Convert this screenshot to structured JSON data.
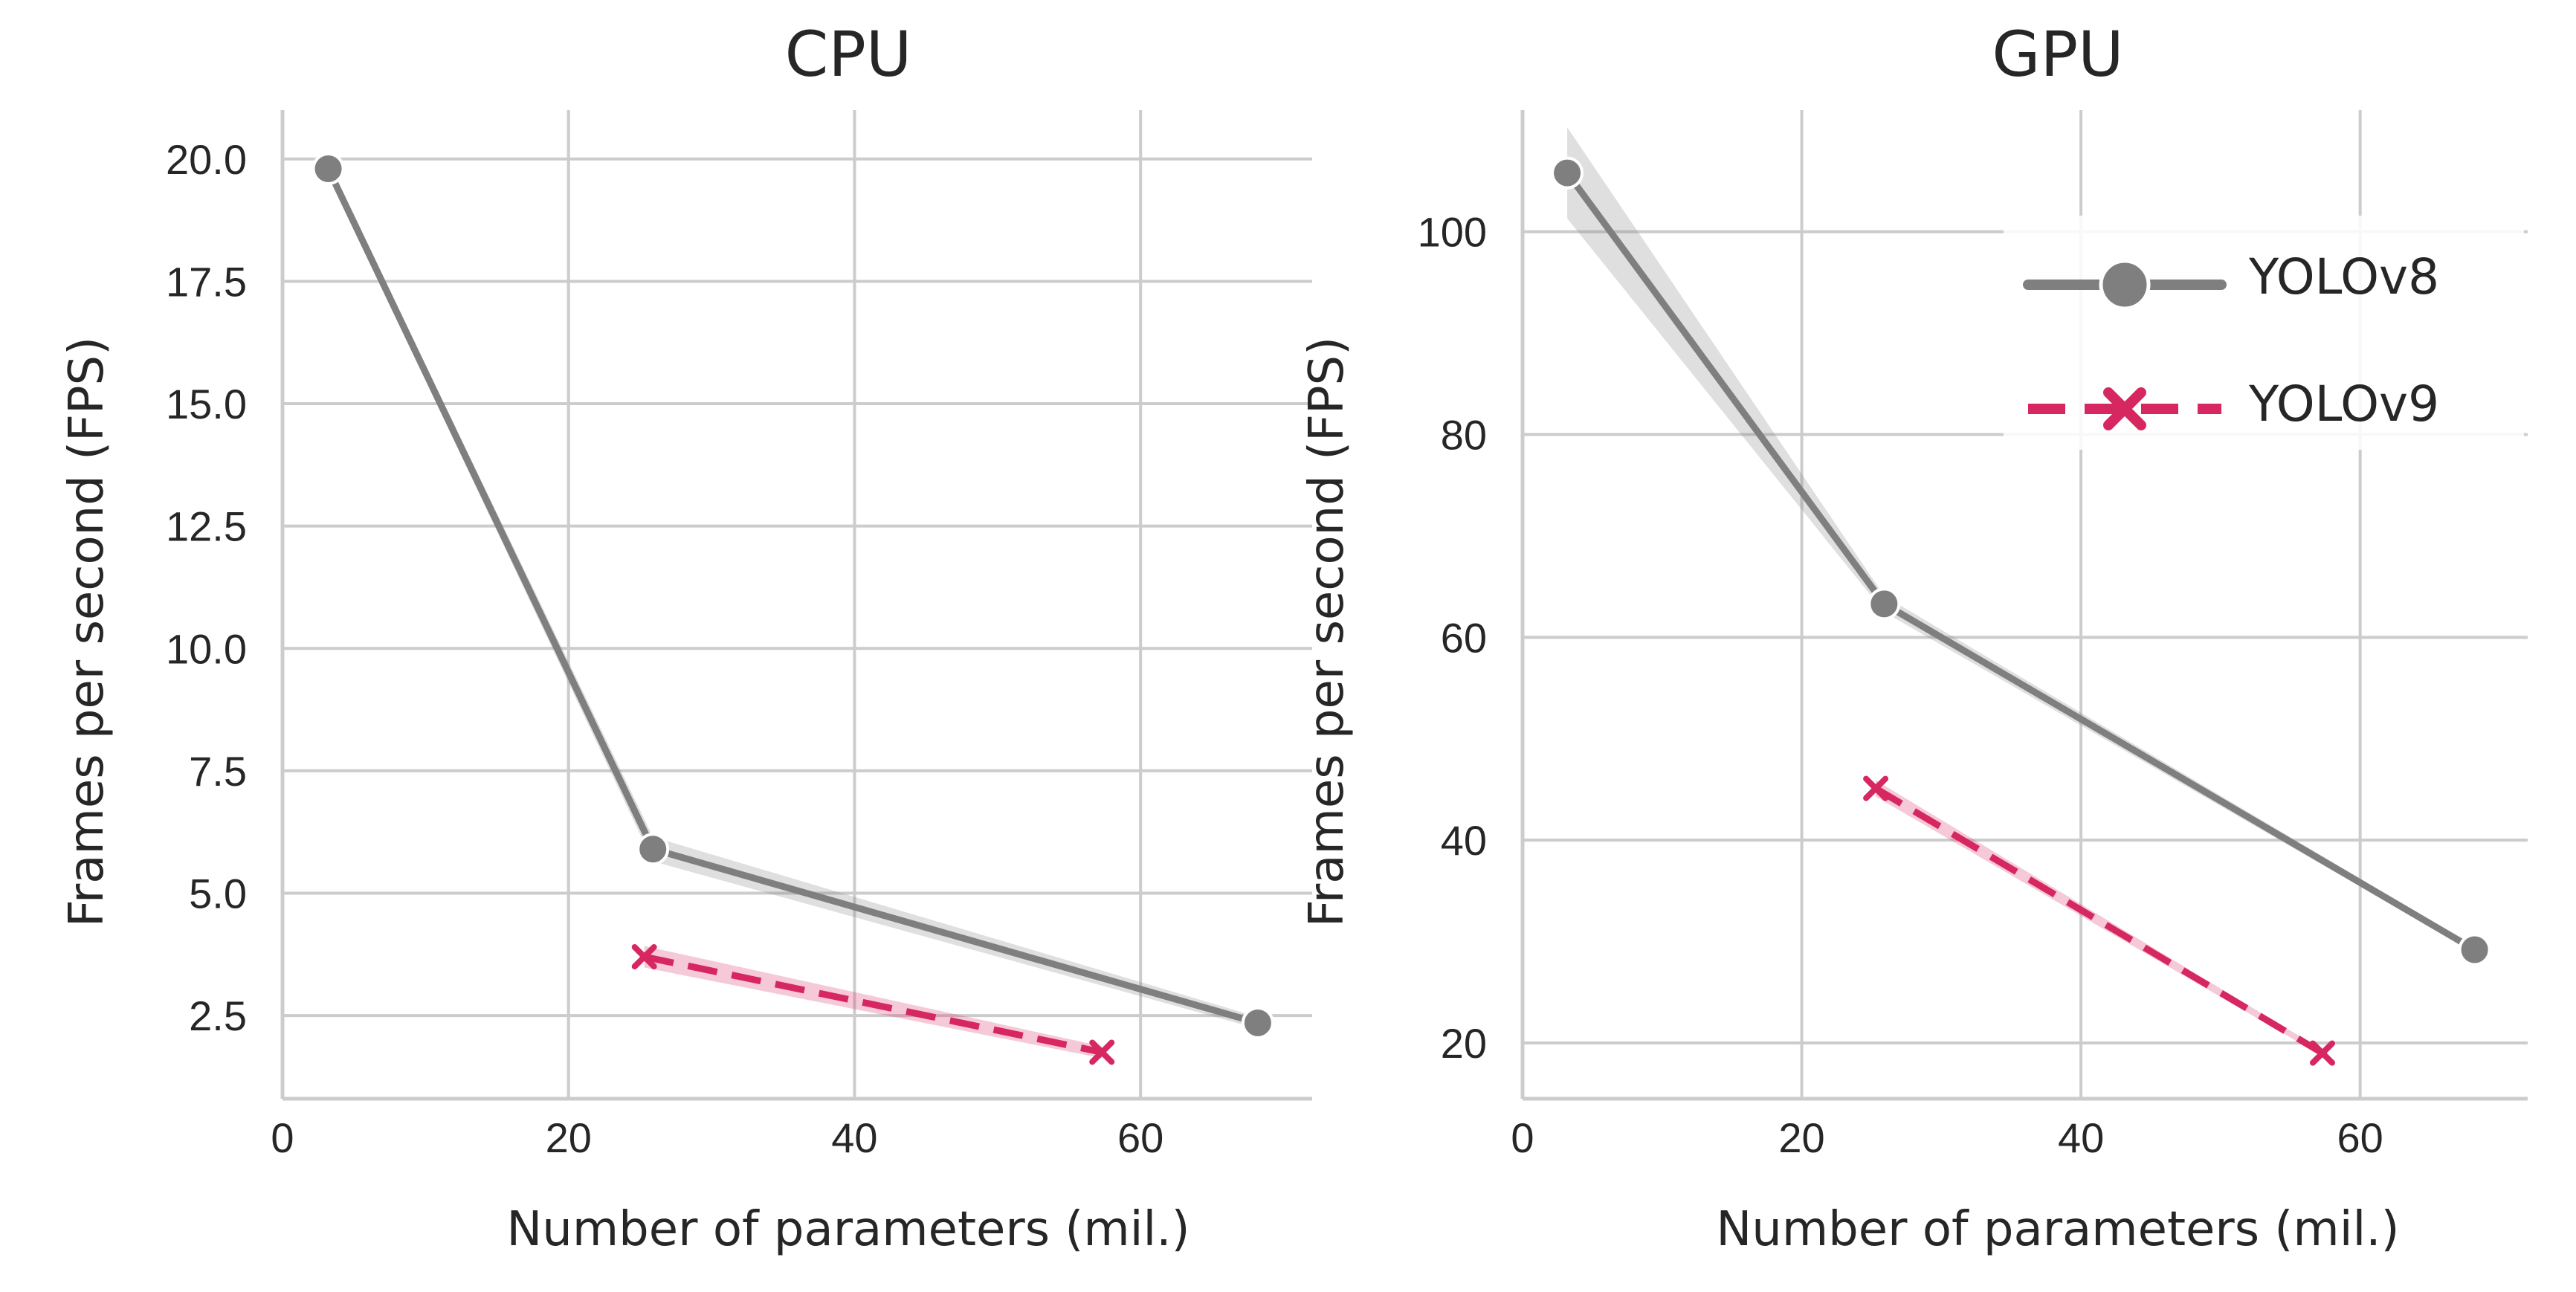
{
  "colors": {
    "yolov8": "#7f7f7f",
    "yolov9": "#d62761",
    "grid": "#cccccc"
  },
  "legend": {
    "placement": "top-right of GPU panel",
    "entries": [
      {
        "label": "YOLOv8",
        "marker": "circle",
        "line": "solid"
      },
      {
        "label": "YOLOv9",
        "marker": "x",
        "line": "dashed"
      }
    ]
  },
  "chart_data": [
    {
      "type": "line",
      "title": "CPU",
      "xlabel": "Number of parameters (mil.)",
      "ylabel": "Frames per second (FPS)",
      "xlim": [
        0,
        72
      ],
      "ylim": [
        0.8,
        21
      ],
      "xticks": [
        0,
        20,
        40,
        60
      ],
      "yticks": [
        2.5,
        5.0,
        7.5,
        10.0,
        12.5,
        15.0,
        17.5,
        20.0
      ],
      "ytick_labels": [
        "2.5",
        "5.0",
        "7.5",
        "10.0",
        "12.5",
        "15.0",
        "17.5",
        "20.0"
      ],
      "grid": true,
      "series": [
        {
          "name": "YOLOv8",
          "x": [
            3.2,
            25.9,
            68.2
          ],
          "y": [
            19.8,
            5.9,
            2.35
          ],
          "band": [
            0.12,
            0.25,
            0.12
          ]
        },
        {
          "name": "YOLOv9",
          "x": [
            25.3,
            57.3
          ],
          "y": [
            3.7,
            1.75
          ],
          "band": [
            0.22,
            0.12
          ]
        }
      ]
    },
    {
      "type": "line",
      "title": "GPU",
      "xlabel": "Number of parameters (mil.)",
      "ylabel": "Frames per second (FPS)",
      "xlim": [
        0,
        72
      ],
      "ylim": [
        14.5,
        112
      ],
      "xticks": [
        0,
        20,
        40,
        60
      ],
      "yticks": [
        20,
        40,
        60,
        80,
        100
      ],
      "ytick_labels": [
        "20",
        "40",
        "60",
        "80",
        "100"
      ],
      "grid": true,
      "series": [
        {
          "name": "YOLOv8",
          "x": [
            3.2,
            25.9,
            68.2
          ],
          "y": [
            105.8,
            63.3,
            29.2
          ],
          "band": [
            4.5,
            0.8,
            0.3
          ]
        },
        {
          "name": "YOLOv9",
          "x": [
            25.3,
            57.3
          ],
          "y": [
            45.1,
            19.0
          ],
          "band": [
            0.8,
            0.3
          ]
        }
      ]
    }
  ]
}
